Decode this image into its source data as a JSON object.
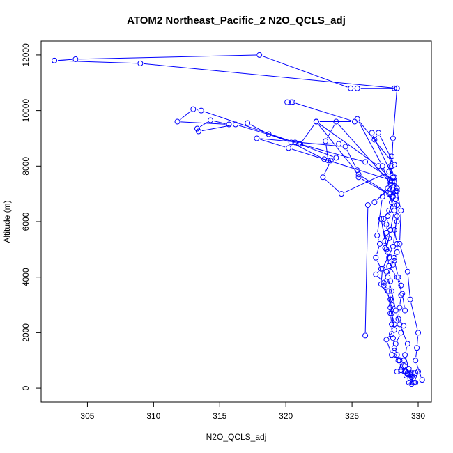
{
  "chart_data": {
    "type": "line",
    "title": "ATOM2 Northeast_Pacific_2 N2O_QCLS_adj",
    "xlabel": "N2O_QCLS_adj",
    "ylabel": "Altitude (m)",
    "xlim": [
      301.5,
      331.0
    ],
    "ylim": [
      -500,
      12500
    ],
    "xticks": [
      305,
      310,
      315,
      320,
      325,
      330
    ],
    "yticks": [
      0,
      2000,
      4000,
      6000,
      8000,
      10000,
      12000
    ],
    "marker": "open-circle",
    "series": [
      {
        "color": "#0000ff",
        "points": [
          [
            329.5,
            150
          ],
          [
            329.3,
            200
          ],
          [
            329.6,
            350
          ],
          [
            329.8,
            550
          ],
          [
            329.2,
            500
          ],
          [
            329.6,
            200
          ],
          [
            329.4,
            550
          ],
          [
            329.0,
            600
          ],
          [
            328.7,
            600
          ],
          [
            328.4,
            600
          ],
          [
            328.9,
            1000
          ],
          [
            328.4,
            1200
          ],
          [
            328.2,
            1450
          ],
          [
            328.1,
            1800
          ],
          [
            328.0,
            1950
          ],
          [
            328.0,
            2300
          ],
          [
            327.9,
            2700
          ],
          [
            328.0,
            3000
          ],
          [
            327.8,
            3500
          ],
          [
            327.9,
            3850
          ],
          [
            327.4,
            3700
          ],
          [
            327.6,
            4200
          ],
          [
            328.1,
            4450
          ],
          [
            327.8,
            4700
          ],
          [
            327.5,
            5050
          ],
          [
            327.8,
            5400
          ],
          [
            327.9,
            5700
          ],
          [
            327.6,
            5900
          ],
          [
            327.4,
            6100
          ],
          [
            327.8,
            6400
          ],
          [
            328.0,
            6700
          ],
          [
            327.9,
            7000
          ],
          [
            328.1,
            7150
          ],
          [
            328.0,
            7450
          ],
          [
            328.2,
            7600
          ],
          [
            327.9,
            8000
          ],
          [
            328.0,
            8350
          ],
          [
            327.8,
            7800
          ],
          [
            324.2,
            7000
          ],
          [
            322.8,
            7600
          ],
          [
            323.4,
            8200
          ],
          [
            323.8,
            8300
          ],
          [
            320.7,
            8850
          ],
          [
            316.2,
            9500
          ],
          [
            313.4,
            9250
          ],
          [
            313.3,
            9350
          ],
          [
            314.3,
            9650
          ],
          [
            315.7,
            9500
          ],
          [
            311.8,
            9600
          ],
          [
            313.0,
            10050
          ],
          [
            313.6,
            10000
          ],
          [
            321.0,
            8800
          ],
          [
            326.0,
            8150
          ],
          [
            328.2,
            7450
          ],
          [
            328.3,
            7100
          ],
          [
            328.0,
            6900
          ],
          [
            328.4,
            6600
          ],
          [
            328.4,
            6000
          ],
          [
            328.2,
            5700
          ],
          [
            328.4,
            5200
          ],
          [
            328.4,
            4900
          ],
          [
            328.2,
            4600
          ],
          [
            328.5,
            4000
          ],
          [
            328.7,
            3700
          ],
          [
            328.7,
            3350
          ],
          [
            328.6,
            2900
          ],
          [
            328.5,
            2500
          ],
          [
            328.9,
            2250
          ],
          [
            328.7,
            2000
          ],
          [
            328.3,
            1600
          ],
          [
            328.2,
            1350
          ],
          [
            328.5,
            1000
          ],
          [
            328.9,
            800
          ],
          [
            329.1,
            600
          ],
          [
            329.4,
            350
          ],
          [
            329.8,
            200
          ]
        ]
      },
      {
        "color": "#0000ff",
        "points": [
          [
            329.7,
            200
          ],
          [
            330.0,
            600
          ],
          [
            330.3,
            300
          ],
          [
            329.8,
            1000
          ],
          [
            329.9,
            1450
          ],
          [
            330.0,
            2000
          ],
          [
            329.4,
            3200
          ],
          [
            329.2,
            4200
          ],
          [
            328.6,
            5200
          ],
          [
            328.7,
            6400
          ],
          [
            328.4,
            7100
          ],
          [
            328.1,
            7600
          ],
          [
            326.5,
            9200
          ],
          [
            326.7,
            8950
          ],
          [
            327.0,
            9200
          ],
          [
            328.2,
            8050
          ],
          [
            325.4,
            9700
          ],
          [
            327.3,
            8000
          ],
          [
            328.3,
            6800
          ],
          [
            328.4,
            6200
          ],
          [
            328.1,
            5100
          ],
          [
            327.3,
            4300
          ],
          [
            327.2,
            3750
          ],
          [
            327.9,
            3200
          ],
          [
            328.0,
            2700
          ],
          [
            328.2,
            2300
          ]
        ]
      },
      {
        "color": "#0000ff",
        "points": [
          [
            328.2,
            10800
          ],
          [
            328.4,
            10800
          ],
          [
            328.1,
            9000
          ],
          [
            328.0,
            8000
          ],
          [
            327.7,
            7200
          ],
          [
            327.3,
            6900
          ],
          [
            326.9,
            5500
          ],
          [
            327.1,
            5200
          ],
          [
            326.8,
            4700
          ],
          [
            327.2,
            4300
          ],
          [
            326.8,
            4100
          ],
          [
            327.4,
            3800
          ],
          [
            327.7,
            3500
          ],
          [
            327.9,
            2900
          ],
          [
            328.2,
            2100
          ],
          [
            327.6,
            1750
          ],
          [
            328.0,
            1200
          ],
          [
            328.6,
            1000
          ],
          [
            328.7,
            650
          ],
          [
            329.0,
            800
          ],
          [
            329.5,
            400
          ],
          [
            329.2,
            550
          ],
          [
            329.1,
            450
          ],
          [
            329.6,
            550
          ]
        ]
      },
      {
        "color": "#0000ff",
        "points": [
          [
            302.5,
            11800
          ],
          [
            304.1,
            11850
          ],
          [
            318.0,
            12000
          ],
          [
            324.9,
            10800
          ],
          [
            325.4,
            10800
          ],
          [
            328.4,
            10800
          ],
          [
            309.0,
            11700
          ],
          [
            302.5,
            11800
          ]
        ]
      },
      {
        "color": "#0000ff",
        "points": [
          [
            320.1,
            10300
          ],
          [
            320.4,
            10300
          ],
          [
            320.5,
            10300
          ],
          [
            325.2,
            9600
          ],
          [
            322.3,
            9600
          ],
          [
            327.0,
            8000
          ],
          [
            328.2,
            7400
          ],
          [
            326.7,
            6700
          ],
          [
            326.2,
            6600
          ],
          [
            326.0,
            1900
          ]
        ]
      },
      {
        "color": "#0000ff",
        "points": [
          [
            317.1,
            9550
          ],
          [
            318.7,
            9150
          ],
          [
            320.4,
            8850
          ],
          [
            322.9,
            8250
          ],
          [
            323.2,
            8200
          ],
          [
            323.0,
            8900
          ],
          [
            323.8,
            9600
          ],
          [
            327.9,
            7400
          ],
          [
            328.1,
            6900
          ],
          [
            325.5,
            7600
          ],
          [
            325.4,
            7850
          ],
          [
            324.5,
            8700
          ],
          [
            317.8,
            9000
          ],
          [
            320.2,
            8650
          ],
          [
            327.9,
            7500
          ],
          [
            328.4,
            7200
          ],
          [
            327.7,
            6200
          ],
          [
            327.6,
            5600
          ],
          [
            327.5,
            5300
          ],
          [
            327.2,
            6100
          ],
          [
            327.7,
            4900
          ],
          [
            328.2,
            4700
          ],
          [
            327.7,
            4000
          ],
          [
            328.0,
            3500
          ],
          [
            328.3,
            2800
          ],
          [
            328.6,
            2300
          ],
          [
            329.2,
            1600
          ],
          [
            329.0,
            1200
          ],
          [
            329.3,
            700
          ],
          [
            329.4,
            500
          ]
        ]
      },
      {
        "color": "#0000ff",
        "points": [
          [
            324.0,
            8800
          ],
          [
            321.1,
            8800
          ],
          [
            322.3,
            9600
          ],
          [
            325.5,
            7700
          ],
          [
            327.8,
            7000
          ],
          [
            328.2,
            6400
          ],
          [
            327.9,
            5700
          ],
          [
            327.6,
            5000
          ],
          [
            327.8,
            4400
          ],
          [
            328.4,
            4000
          ],
          [
            328.8,
            3400
          ],
          [
            329.0,
            2800
          ]
        ]
      }
    ]
  }
}
